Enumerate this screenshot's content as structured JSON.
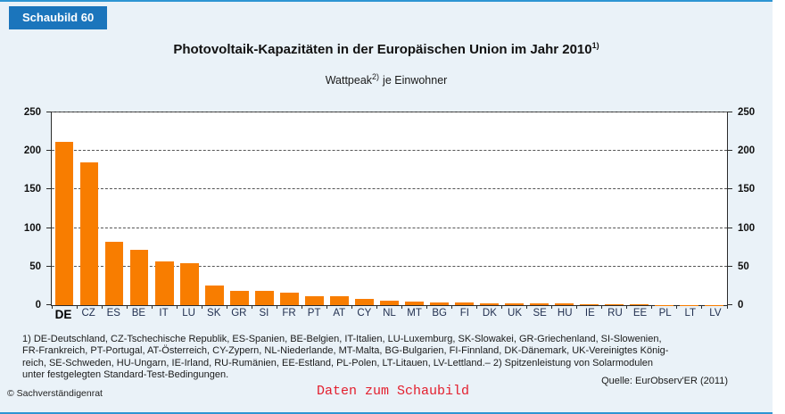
{
  "badge": "Schaubild 60",
  "title": {
    "text": "Photovoltaik-Kapazitäten in der Europäischen Union im Jahr 2010",
    "sup": "1)"
  },
  "subtitle": {
    "pre": "Wattpeak",
    "sup": "2)",
    "post": "je Einwohner"
  },
  "chart_data": {
    "type": "bar",
    "title": "Photovoltaik-Kapazitäten in der Europäischen Union im Jahr 2010",
    "unit": "Wattpeak je Einwohner",
    "categories": [
      "DE",
      "CZ",
      "ES",
      "BE",
      "IT",
      "LU",
      "SK",
      "GR",
      "SI",
      "FR",
      "PT",
      "AT",
      "CY",
      "NL",
      "MT",
      "BG",
      "FI",
      "DK",
      "UK",
      "SE",
      "HU",
      "IE",
      "RU",
      "EE",
      "PL",
      "LT",
      "LV"
    ],
    "values": [
      212,
      185,
      82,
      72,
      57,
      54,
      26,
      18,
      18,
      16,
      12,
      12,
      8,
      6,
      5,
      3.5,
      3,
      2,
      2,
      2,
      2,
      1.5,
      1.5,
      1.5,
      0.3,
      0.2,
      0.1
    ],
    "ylim": [
      0,
      250
    ],
    "yticks": [
      0,
      50,
      100,
      150,
      200,
      250
    ],
    "grid": "horizontal-dashed",
    "legend": "none",
    "bar_color": "#F87D00",
    "highlight_category": "DE"
  },
  "footnote": {
    "lines": [
      "1) DE-Deutschland, CZ-Tschechische Republik, ES-Spanien, BE-Belgien, IT-Italien, LU-Luxemburg, SK-Slowakei, GR-Griechenland, SI-Slowenien,",
      "FR-Frankreich, PT-Portugal, AT-Österreich, CY-Zypern, NL-Niederlande, MT-Malta, BG-Bulgarien, FI-Finnland, DK-Dänemark, UK-Vereinigtes König-",
      "reich, SE-Schweden, HU-Ungarn, IE-Irland, RU-Rumänien, EE-Estland, PL-Polen, LT-Litauen, LV-Lettland.– 2) Spitzenleistung von Solarmodulen",
      "unter festgelegten Standard-Test-Bedingungen."
    ]
  },
  "source": "Quelle: EurObserv'ER (2011)",
  "data_link": "Daten zum Schaubild",
  "copyright": "© Sachverständigenrat",
  "colors": {
    "badge_blue": "#1B75BC",
    "frame_blue": "#2E95D3",
    "page_background": "#EAF2F8",
    "bar_orange": "#F87D00",
    "link_red": "#E31E2D"
  }
}
